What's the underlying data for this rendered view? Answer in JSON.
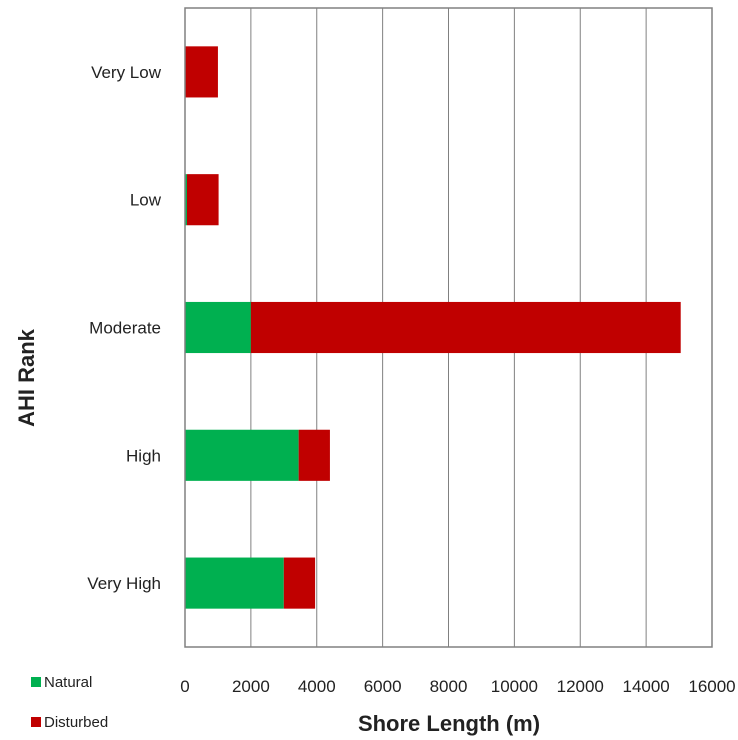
{
  "chart_data": {
    "type": "bar",
    "orientation": "horizontal",
    "stacked": true,
    "categories": [
      "Very Low",
      "Low",
      "Moderate",
      "High",
      "Very High"
    ],
    "series": [
      {
        "name": "Natural",
        "color": "#00b050",
        "values": [
          0,
          60,
          2000,
          3450,
          3000
        ]
      },
      {
        "name": "Disturbed",
        "color": "#c00000",
        "values": [
          1000,
          960,
          13050,
          950,
          950
        ]
      }
    ],
    "xlabel": "Shore Length (m)",
    "ylabel": "AHI Rank",
    "xlim": [
      0,
      16000
    ],
    "xticks": [
      "0",
      "2000",
      "4000",
      "6000",
      "8000",
      "10000",
      "12000",
      "14000",
      "16000"
    ],
    "grid": "vertical",
    "legend_position": "bottom-left"
  }
}
